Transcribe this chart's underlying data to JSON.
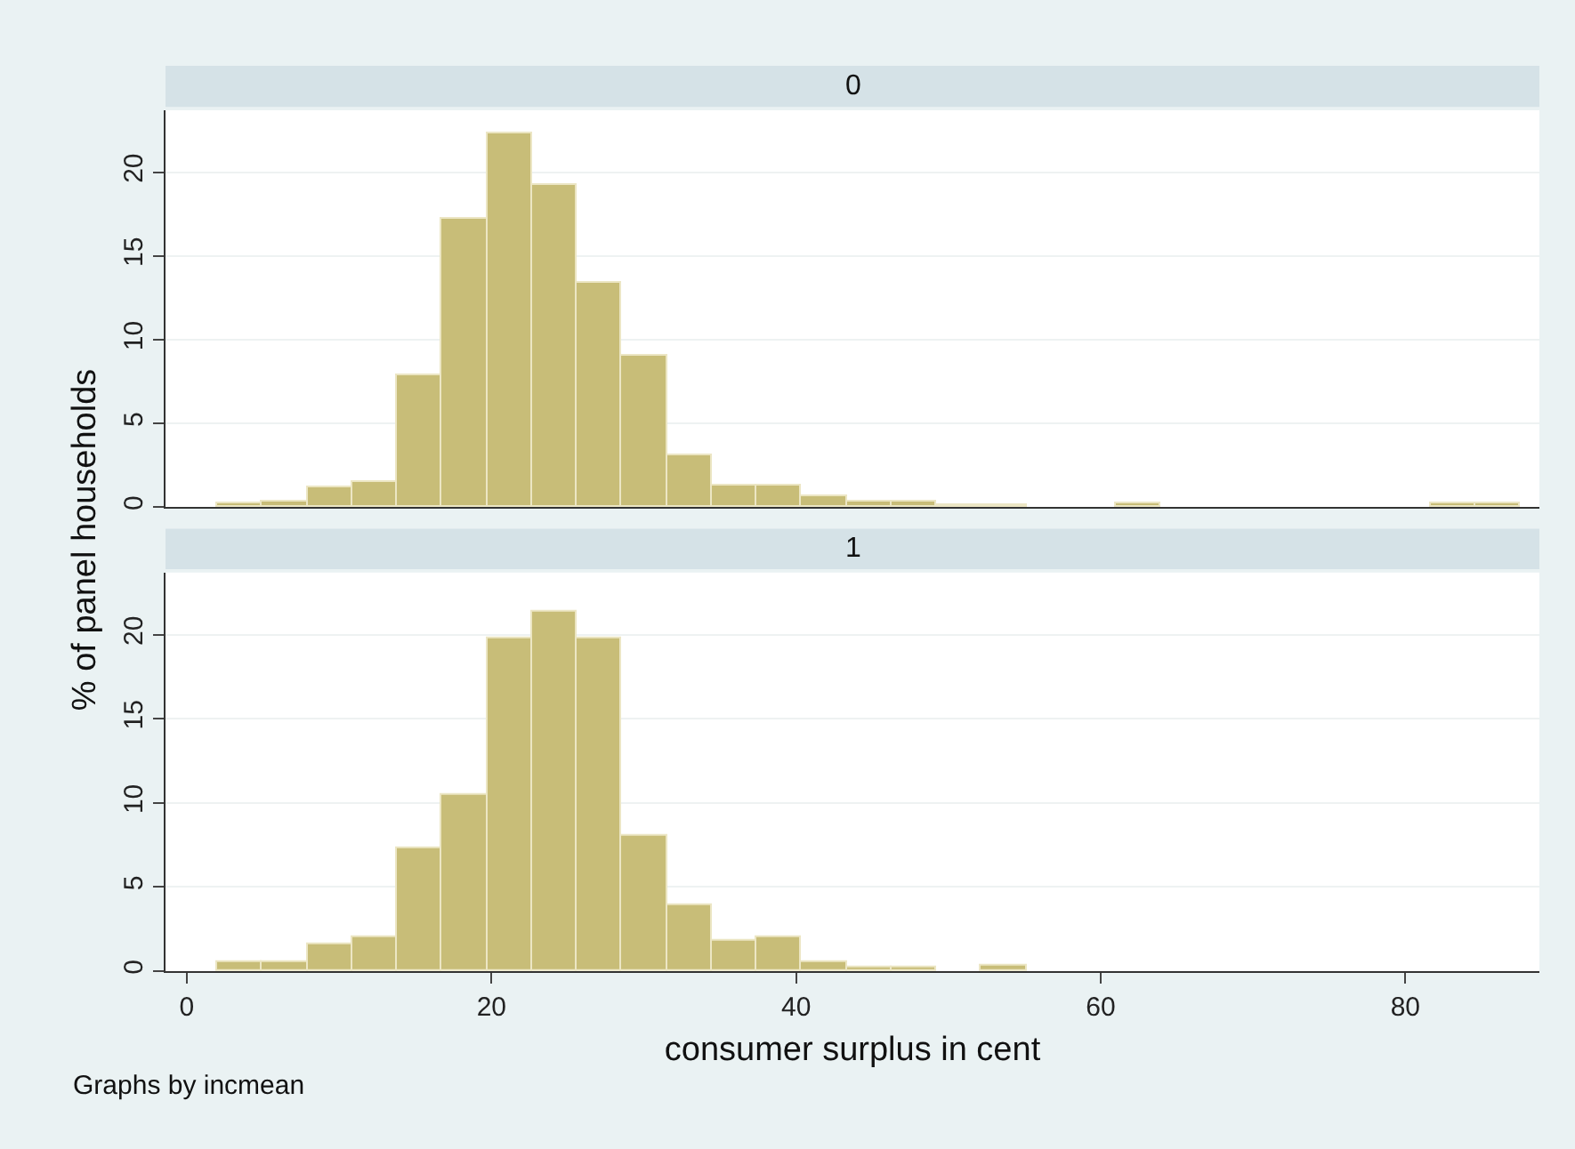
{
  "chart_data": [
    {
      "type": "histogram",
      "title": "0",
      "ylabel": "% of panel households",
      "color": "#c8bd78",
      "bins": [
        2.0,
        4.95,
        7.9,
        10.85,
        13.8,
        16.75,
        19.7,
        22.65,
        25.6,
        28.55,
        31.5,
        34.45,
        37.4,
        40.35,
        43.3,
        46.25,
        49.2,
        52.15,
        55.1,
        58.05,
        61.0,
        63.95,
        66.9,
        69.85,
        72.8,
        75.75,
        78.7,
        81.65,
        84.6,
        87.55
      ],
      "values": [
        0.2,
        0.3,
        1.2,
        1.5,
        7.9,
        17.2,
        22.3,
        19.2,
        13.4,
        9.0,
        3.1,
        1.3,
        1.3,
        0.7,
        0.3,
        0.3,
        0.1,
        0.1,
        0,
        0,
        0.2,
        0,
        0,
        0,
        0,
        0,
        0,
        0.2,
        0.2
      ],
      "xlim": [
        -1.4,
        88.8
      ],
      "ylim": [
        0,
        23.7
      ],
      "xticks": [
        0,
        20,
        40,
        60,
        80
      ],
      "yticks": [
        0,
        5,
        10,
        15,
        20
      ],
      "grid": "y",
      "tick_labels": "y"
    },
    {
      "type": "histogram",
      "title": "1",
      "xlabel": "consumer surplus in cent",
      "color": "#c8bd78",
      "bins": [
        2.0,
        4.95,
        7.9,
        10.85,
        13.8,
        16.75,
        19.7,
        22.65,
        25.6,
        28.55,
        31.5,
        34.45,
        37.4,
        40.35,
        43.3,
        46.25,
        49.2,
        52.15,
        55.1,
        58.05,
        61.0,
        63.95,
        66.9,
        69.85,
        72.8,
        75.75,
        78.7,
        81.65,
        84.6,
        87.55
      ],
      "values": [
        0.5,
        0.5,
        1.6,
        2.0,
        7.3,
        10.5,
        19.8,
        21.4,
        19.8,
        8.1,
        3.9,
        1.8,
        2.0,
        0.5,
        0.2,
        0.2,
        0,
        0.3,
        0,
        0,
        0,
        0,
        0,
        0,
        0,
        0,
        0,
        0,
        0
      ],
      "xlim": [
        -1.4,
        88.8
      ],
      "ylim": [
        0,
        23.7
      ],
      "xticks": [
        0,
        20,
        40,
        60,
        80
      ],
      "yticks": [
        0,
        5,
        10,
        15,
        20
      ],
      "grid": "y",
      "annotations": [
        "Graphs by incmean"
      ]
    }
  ]
}
